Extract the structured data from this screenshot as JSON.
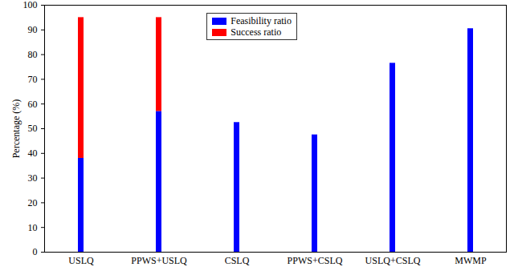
{
  "chart_data": {
    "type": "bar",
    "stacked": true,
    "y_label": "Percentage (%)",
    "categories": [
      "USLQ",
      "PPWS+USLQ",
      "CSLQ",
      "PPWS+CSLQ",
      "USLQ+CSLQ",
      "MWMP"
    ],
    "series": [
      {
        "name": "Feasibility ratio",
        "color": "#0000ff",
        "values": [
          38,
          57,
          52.5,
          47.5,
          76.5,
          90.5
        ]
      },
      {
        "name": "Success ratio",
        "color": "#ff0000",
        "values": [
          57,
          38,
          0,
          0,
          0,
          0
        ]
      }
    ],
    "ylim": [
      0,
      100
    ],
    "yticks": [
      0,
      10,
      20,
      30,
      40,
      50,
      60,
      70,
      80,
      90,
      100
    ],
    "grid": false,
    "legend": "top"
  }
}
